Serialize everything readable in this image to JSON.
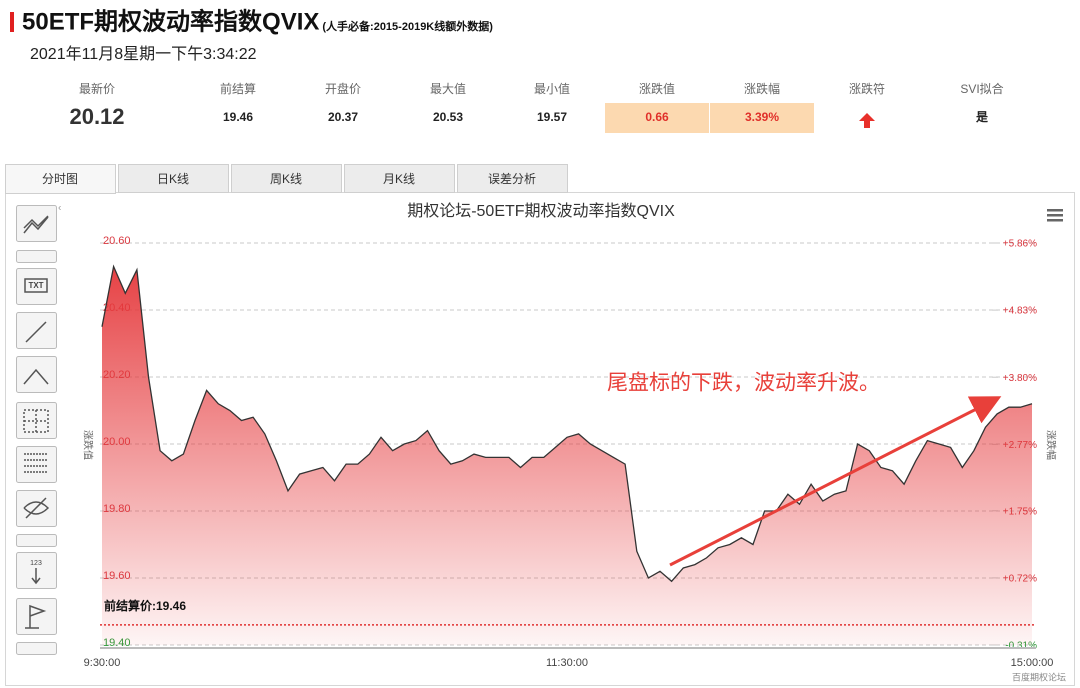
{
  "header": {
    "title": "50ETF期权波动率指数QVIX",
    "subtitle": "(人手必备:2015-2019K线额外数据)",
    "datetime": "2021年11月8星期一下午3:34:22"
  },
  "stats": [
    {
      "label": "最新价",
      "value": "20.12"
    },
    {
      "label": "前结算",
      "value": "19.46"
    },
    {
      "label": "开盘价",
      "value": "20.37"
    },
    {
      "label": "最大值",
      "value": "20.53"
    },
    {
      "label": "最小值",
      "value": "19.57"
    },
    {
      "label": "涨跌值",
      "value": "0.66",
      "highlight": true
    },
    {
      "label": "涨跌幅",
      "value": "3.39%",
      "highlight": true
    },
    {
      "label": "涨跌符"
    },
    {
      "label": "SVI拟合",
      "value": "是"
    }
  ],
  "tabs": [
    "分时图",
    "日K线",
    "周K线",
    "月K线",
    "误差分析"
  ],
  "active_tab": 0,
  "toolbar_labels": {
    "text_tool": "TXT",
    "number_tool": "123"
  },
  "chart_data": {
    "type": "area",
    "title": "期权论坛-50ETF期权波动率指数QVIX",
    "ylabel": "涨跌值",
    "y2label": "涨跌幅",
    "categories": [
      "9:30:00",
      null,
      null,
      null,
      null,
      null,
      null,
      null,
      null,
      null,
      null,
      null,
      null,
      null,
      null,
      null,
      null,
      null,
      null,
      null,
      null,
      null,
      null,
      null,
      null,
      null,
      null,
      null,
      null,
      null,
      null,
      null,
      null,
      null,
      null,
      null,
      null,
      null,
      null,
      null,
      "11:30:00",
      null,
      null,
      null,
      null,
      null,
      null,
      null,
      null,
      null,
      null,
      null,
      null,
      null,
      null,
      null,
      null,
      null,
      null,
      null,
      null,
      null,
      null,
      null,
      null,
      null,
      null,
      null,
      null,
      null,
      null,
      null,
      null,
      null,
      null,
      null,
      null,
      null,
      null,
      null,
      "15:00:00"
    ],
    "values": [
      20.35,
      20.53,
      20.45,
      20.52,
      20.2,
      19.98,
      19.95,
      19.97,
      20.07,
      20.16,
      20.12,
      20.1,
      20.07,
      20.08,
      20.03,
      19.95,
      19.86,
      19.91,
      19.92,
      19.93,
      19.89,
      19.94,
      19.94,
      19.97,
      20.02,
      19.98,
      20.0,
      20.01,
      20.04,
      19.98,
      19.94,
      19.95,
      19.97,
      19.96,
      19.96,
      19.96,
      19.93,
      19.96,
      19.96,
      19.99,
      20.02,
      20.03,
      20.0,
      19.98,
      19.96,
      19.94,
      19.68,
      19.6,
      19.62,
      19.59,
      19.63,
      19.64,
      19.66,
      19.69,
      19.7,
      19.72,
      19.7,
      19.8,
      19.8,
      19.85,
      19.82,
      19.88,
      19.83,
      19.85,
      19.86,
      20.0,
      19.98,
      19.93,
      19.92,
      19.88,
      19.95,
      20.01,
      20.0,
      19.99,
      19.93,
      19.98,
      20.05,
      20.09,
      20.11,
      20.11,
      20.12
    ],
    "color": "#333333",
    "fill": "#e5383b",
    "up_color": "#d9363e",
    "down_color": "#2e9b3a",
    "ylim": [
      19.4,
      20.6
    ],
    "yticks": [
      {
        "value": 19.4,
        "label": "19.40"
      },
      {
        "value": 19.6,
        "label": "19.60"
      },
      {
        "value": 19.8,
        "label": "19.80"
      },
      {
        "value": 20.0,
        "label": "20.00"
      },
      {
        "value": 20.2,
        "label": "20.20"
      },
      {
        "value": 20.4,
        "label": "20.40"
      },
      {
        "value": 20.6,
        "label": "20.60"
      }
    ],
    "y2lim": [
      -0.31,
      5.86
    ],
    "y2ticks": [
      {
        "value": -0.31,
        "label": "-0.31%"
      },
      {
        "value": 0.72,
        "label": "+0.72%"
      },
      {
        "value": 1.75,
        "label": "+1.75%"
      },
      {
        "value": 2.77,
        "label": "+2.77%"
      },
      {
        "value": 3.8,
        "label": "+3.80%"
      },
      {
        "value": 4.83,
        "label": "+4.83%"
      },
      {
        "value": 5.86,
        "label": "+5.86%"
      }
    ],
    "grid": true,
    "reference_line": {
      "value": 19.46,
      "label": "前结算价:19.46",
      "color": "#e03030"
    },
    "annotation": "尾盘标的下跌，波动率升波。"
  },
  "footer": "百度期权论坛"
}
